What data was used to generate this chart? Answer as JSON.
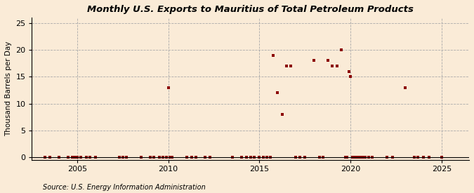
{
  "title": "Monthly U.S. Exports to Mauritius of Total Petroleum Products",
  "ylabel": "Thousand Barrels per Day",
  "source": "Source: U.S. Energy Information Administration",
  "background_color": "#faebd7",
  "marker_color": "#8b0000",
  "xlim": [
    2002.5,
    2026.5
  ],
  "ylim": [
    -0.5,
    26
  ],
  "yticks": [
    0,
    5,
    10,
    15,
    20,
    25
  ],
  "xticks": [
    2005,
    2010,
    2015,
    2020,
    2025
  ],
  "data_points": [
    [
      2003.25,
      0
    ],
    [
      2003.5,
      0
    ],
    [
      2004.0,
      0
    ],
    [
      2004.5,
      0
    ],
    [
      2004.75,
      0
    ],
    [
      2004.9,
      0
    ],
    [
      2005.0,
      0
    ],
    [
      2005.2,
      0
    ],
    [
      2005.5,
      0
    ],
    [
      2005.7,
      0
    ],
    [
      2006.0,
      0
    ],
    [
      2007.3,
      0
    ],
    [
      2007.5,
      0
    ],
    [
      2007.7,
      0
    ],
    [
      2008.5,
      0
    ],
    [
      2009.0,
      0
    ],
    [
      2009.2,
      0
    ],
    [
      2009.5,
      0
    ],
    [
      2009.7,
      0
    ],
    [
      2009.9,
      0
    ],
    [
      2010.0,
      13
    ],
    [
      2010.1,
      0
    ],
    [
      2010.2,
      0
    ],
    [
      2011.0,
      0
    ],
    [
      2011.3,
      0
    ],
    [
      2011.5,
      0
    ],
    [
      2012.0,
      0
    ],
    [
      2012.3,
      0
    ],
    [
      2013.5,
      0
    ],
    [
      2014.0,
      0
    ],
    [
      2014.3,
      0
    ],
    [
      2014.5,
      0
    ],
    [
      2014.7,
      0
    ],
    [
      2015.0,
      0
    ],
    [
      2015.2,
      0
    ],
    [
      2015.4,
      0
    ],
    [
      2015.6,
      0
    ],
    [
      2015.75,
      19
    ],
    [
      2016.0,
      12
    ],
    [
      2016.25,
      8
    ],
    [
      2016.5,
      17
    ],
    [
      2016.7,
      17
    ],
    [
      2017.0,
      0
    ],
    [
      2017.2,
      0
    ],
    [
      2017.5,
      0
    ],
    [
      2018.0,
      18
    ],
    [
      2018.3,
      0
    ],
    [
      2018.5,
      0
    ],
    [
      2018.75,
      18
    ],
    [
      2019.0,
      17
    ],
    [
      2019.25,
      17
    ],
    [
      2019.5,
      20
    ],
    [
      2019.7,
      0
    ],
    [
      2019.8,
      0
    ],
    [
      2019.9,
      16
    ],
    [
      2020.0,
      15
    ],
    [
      2020.1,
      0
    ],
    [
      2020.2,
      0
    ],
    [
      2020.3,
      0
    ],
    [
      2020.4,
      0
    ],
    [
      2020.5,
      0
    ],
    [
      2020.6,
      0
    ],
    [
      2020.7,
      0
    ],
    [
      2020.8,
      0
    ],
    [
      2021.0,
      0
    ],
    [
      2021.2,
      0
    ],
    [
      2022.0,
      0
    ],
    [
      2022.3,
      0
    ],
    [
      2023.0,
      13
    ],
    [
      2023.5,
      0
    ],
    [
      2023.7,
      0
    ],
    [
      2024.0,
      0
    ],
    [
      2024.3,
      0
    ],
    [
      2025.0,
      0
    ]
  ]
}
